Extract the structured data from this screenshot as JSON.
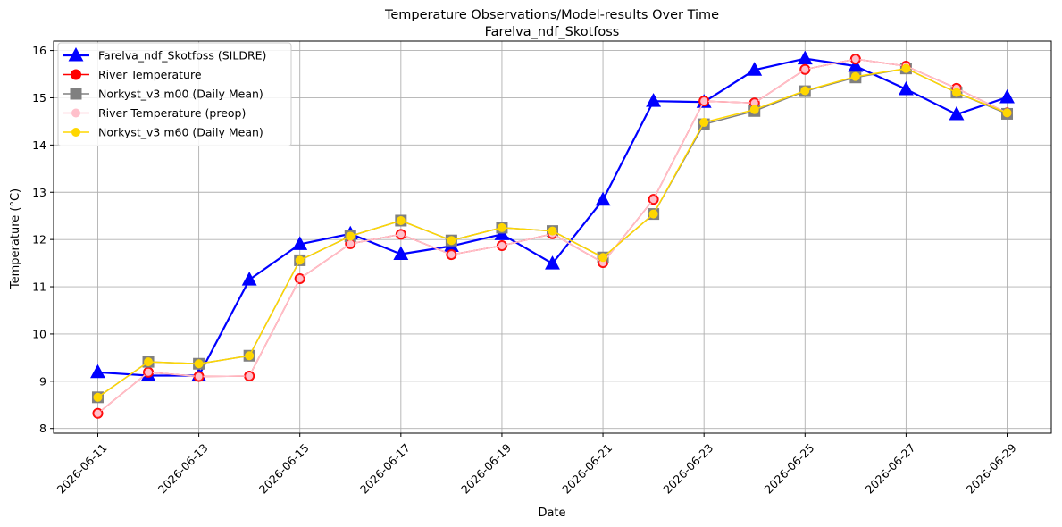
{
  "chart_data": {
    "type": "line",
    "title": "Temperature Observations/Model-results Over Time",
    "subtitle": "Farelva_ndf_Skotfoss",
    "xlabel": "Date",
    "ylabel": "Temperature (°C)",
    "ylim": [
      7.9,
      16.2
    ],
    "yticks": [
      8,
      9,
      10,
      11,
      12,
      13,
      14,
      15,
      16
    ],
    "xlim": [
      "2026-06-10T03:00",
      "2026-06-29T21:00"
    ],
    "xticks": [
      "2026-06-11",
      "2026-06-13",
      "2026-06-15",
      "2026-06-17",
      "2026-06-19",
      "2026-06-21",
      "2026-06-23",
      "2026-06-25",
      "2026-06-27",
      "2026-06-29"
    ],
    "grid": true,
    "legend_position": "upper left",
    "series": [
      {
        "name": "Farelva_ndf_Skotfoss (SILDRE)",
        "color": "#0000ff",
        "marker": "triangle",
        "x": [
          "2026-06-11",
          "2026-06-12",
          "2026-06-13",
          "2026-06-14",
          "2026-06-15",
          "2026-06-16",
          "2026-06-17",
          "2026-06-18",
          "2026-06-19",
          "2026-06-20",
          "2026-06-21",
          "2026-06-22",
          "2026-06-23",
          "2026-06-24",
          "2026-06-25",
          "2026-06-26",
          "2026-06-27",
          "2026-06-28",
          "2026-06-29"
        ],
        "y": [
          9.19,
          9.12,
          9.12,
          11.15,
          11.9,
          12.12,
          11.69,
          11.86,
          12.11,
          11.49,
          12.84,
          14.93,
          14.91,
          15.59,
          15.83,
          15.67,
          15.18,
          14.65,
          15.01
        ]
      },
      {
        "name": "River Temperature",
        "color": "#ff0000",
        "marker": "circle",
        "x": [
          "2026-06-11",
          "2026-06-12",
          "2026-06-13",
          "2026-06-14",
          "2026-06-15",
          "2026-06-16",
          "2026-06-17",
          "2026-06-18",
          "2026-06-19",
          "2026-06-20",
          "2026-06-21",
          "2026-06-22",
          "2026-06-23",
          "2026-06-24",
          "2026-06-25",
          "2026-06-26",
          "2026-06-27",
          "2026-06-28",
          "2026-06-29"
        ],
        "y": [
          8.32,
          9.19,
          9.1,
          9.11,
          11.17,
          11.91,
          12.11,
          11.68,
          11.87,
          12.12,
          11.51,
          12.85,
          14.93,
          14.89,
          15.6,
          15.82,
          15.67,
          15.2,
          14.68
        ]
      },
      {
        "name": "Norkyst_v3 m00 (Daily Mean)",
        "color": "#808080",
        "marker": "square",
        "x": [
          "2026-06-11",
          "2026-06-12",
          "2026-06-13",
          "2026-06-14",
          "2026-06-15",
          "2026-06-16",
          "2026-06-17",
          "2026-06-18",
          "2026-06-19",
          "2026-06-20",
          "2026-06-21",
          "2026-06-22",
          "2026-06-23",
          "2026-06-24",
          "2026-06-25",
          "2026-06-26",
          "2026-06-27",
          "2026-06-28",
          "2026-06-29"
        ],
        "y": [
          8.66,
          9.41,
          9.37,
          9.54,
          11.56,
          12.07,
          12.4,
          11.98,
          12.25,
          12.18,
          11.62,
          12.54,
          14.44,
          14.72,
          15.14,
          15.43,
          15.62,
          15.11,
          14.66
        ]
      },
      {
        "name": "River Temperature (preop)",
        "color": "#ffc0cb",
        "marker": "circle",
        "x": [
          "2026-06-11",
          "2026-06-12",
          "2026-06-13",
          "2026-06-14",
          "2026-06-15",
          "2026-06-16",
          "2026-06-17",
          "2026-06-18",
          "2026-06-19",
          "2026-06-20",
          "2026-06-21",
          "2026-06-22",
          "2026-06-23",
          "2026-06-24",
          "2026-06-25",
          "2026-06-26",
          "2026-06-27",
          "2026-06-28",
          "2026-06-29"
        ],
        "y": [
          8.32,
          9.19,
          9.1,
          9.11,
          11.17,
          11.91,
          12.11,
          11.68,
          11.87,
          12.12,
          11.51,
          12.85,
          14.93,
          14.89,
          15.6,
          15.82,
          15.67,
          15.2,
          14.68
        ]
      },
      {
        "name": "Norkyst_v3 m60 (Daily Mean)",
        "color": "#ffd700",
        "marker": "circle",
        "x": [
          "2026-06-11",
          "2026-06-12",
          "2026-06-13",
          "2026-06-14",
          "2026-06-15",
          "2026-06-16",
          "2026-06-17",
          "2026-06-18",
          "2026-06-19",
          "2026-06-20",
          "2026-06-21",
          "2026-06-22",
          "2026-06-23",
          "2026-06-24",
          "2026-06-25",
          "2026-06-26",
          "2026-06-27",
          "2026-06-28",
          "2026-06-29"
        ],
        "y": [
          8.66,
          9.41,
          9.37,
          9.54,
          11.56,
          12.07,
          12.4,
          11.98,
          12.25,
          12.18,
          11.62,
          12.54,
          14.48,
          14.75,
          15.15,
          15.45,
          15.62,
          15.11,
          14.68
        ]
      }
    ]
  }
}
